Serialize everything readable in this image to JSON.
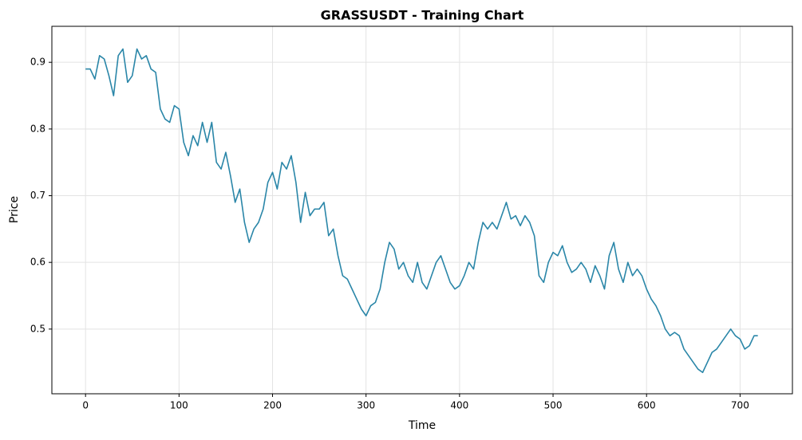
{
  "chart_data": {
    "type": "line",
    "title": "GRASSUSDT - Training Chart",
    "x_label": "Time",
    "y_label": "Price",
    "x": [
      0,
      5,
      10,
      15,
      20,
      25,
      30,
      35,
      40,
      45,
      50,
      55,
      60,
      65,
      70,
      75,
      80,
      85,
      90,
      95,
      100,
      105,
      110,
      115,
      120,
      125,
      130,
      135,
      140,
      145,
      150,
      155,
      160,
      165,
      170,
      175,
      180,
      185,
      190,
      195,
      200,
      205,
      210,
      215,
      220,
      225,
      230,
      235,
      240,
      245,
      250,
      255,
      260,
      265,
      270,
      275,
      280,
      285,
      290,
      295,
      300,
      305,
      310,
      315,
      320,
      325,
      330,
      335,
      340,
      345,
      350,
      355,
      360,
      365,
      370,
      375,
      380,
      385,
      390,
      395,
      400,
      405,
      410,
      415,
      420,
      425,
      430,
      435,
      440,
      445,
      450,
      455,
      460,
      465,
      470,
      475,
      480,
      485,
      490,
      495,
      500,
      505,
      510,
      515,
      520,
      525,
      530,
      535,
      540,
      545,
      550,
      555,
      560,
      565,
      570,
      575,
      580,
      585,
      590,
      595,
      600,
      605,
      610,
      615,
      620,
      625,
      630,
      635,
      640,
      645,
      650,
      655,
      660,
      665,
      670,
      675,
      680,
      685,
      690,
      695,
      700,
      705,
      710,
      715,
      719
    ],
    "series": [
      {
        "name": "GRASSUSDT",
        "color": "#2a86a8",
        "values": [
          0.89,
          0.89,
          0.875,
          0.91,
          0.905,
          0.88,
          0.85,
          0.91,
          0.92,
          0.87,
          0.88,
          0.92,
          0.905,
          0.91,
          0.89,
          0.885,
          0.83,
          0.815,
          0.81,
          0.835,
          0.83,
          0.78,
          0.76,
          0.79,
          0.775,
          0.81,
          0.78,
          0.81,
          0.75,
          0.74,
          0.765,
          0.73,
          0.69,
          0.71,
          0.66,
          0.63,
          0.65,
          0.66,
          0.68,
          0.72,
          0.735,
          0.71,
          0.75,
          0.74,
          0.76,
          0.72,
          0.66,
          0.705,
          0.67,
          0.68,
          0.68,
          0.69,
          0.64,
          0.65,
          0.61,
          0.58,
          0.575,
          0.56,
          0.545,
          0.53,
          0.52,
          0.535,
          0.54,
          0.56,
          0.6,
          0.63,
          0.62,
          0.59,
          0.6,
          0.58,
          0.57,
          0.6,
          0.57,
          0.56,
          0.58,
          0.6,
          0.61,
          0.59,
          0.57,
          0.56,
          0.565,
          0.58,
          0.6,
          0.59,
          0.63,
          0.66,
          0.65,
          0.66,
          0.65,
          0.67,
          0.69,
          0.665,
          0.67,
          0.655,
          0.67,
          0.66,
          0.64,
          0.58,
          0.57,
          0.6,
          0.615,
          0.61,
          0.625,
          0.6,
          0.585,
          0.59,
          0.6,
          0.59,
          0.57,
          0.595,
          0.58,
          0.56,
          0.61,
          0.63,
          0.59,
          0.57,
          0.6,
          0.58,
          0.59,
          0.58,
          0.56,
          0.545,
          0.535,
          0.52,
          0.5,
          0.49,
          0.495,
          0.49,
          0.47,
          0.46,
          0.45,
          0.44,
          0.435,
          0.45,
          0.465,
          0.47,
          0.48,
          0.49,
          0.5,
          0.49,
          0.485,
          0.47,
          0.475,
          0.49,
          0.49
        ]
      }
    ],
    "xlim": [
      -36,
      756
    ],
    "ylim": [
      0.403,
      0.954
    ],
    "xticks": [
      0,
      100,
      200,
      300,
      400,
      500,
      600,
      700
    ],
    "yticks": [
      0.5,
      0.6,
      0.7,
      0.8,
      0.9
    ],
    "grid": true
  }
}
